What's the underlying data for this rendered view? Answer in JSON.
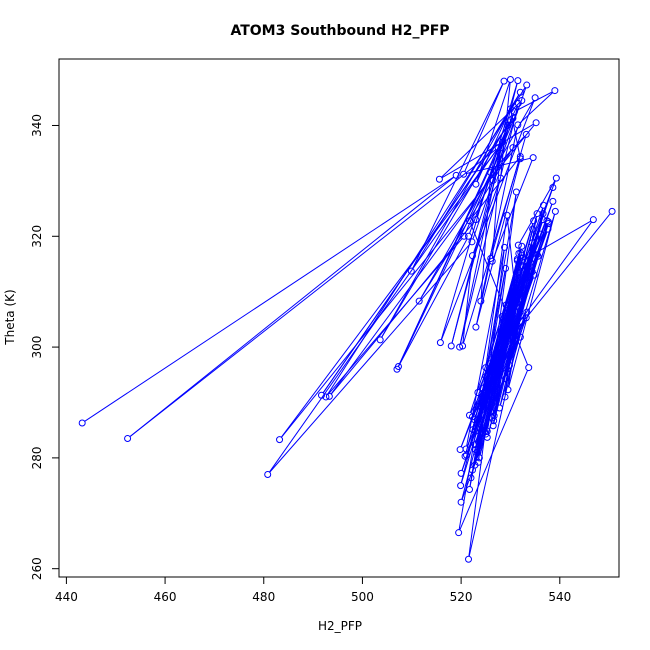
{
  "chart_data": {
    "type": "scatter",
    "title": "ATOM3 Southbound H2_PFP",
    "xlabel": "H2_PFP",
    "ylabel": "Theta (K)",
    "xlim": [
      438.5,
      552.0
    ],
    "ylim": [
      258.5,
      352.0
    ],
    "x_ticks": [
      440,
      460,
      480,
      500,
      520,
      540
    ],
    "y_ticks": [
      260,
      280,
      300,
      320,
      340
    ],
    "series_color": "#0000ff",
    "marker": "open-circle",
    "connected": true,
    "series": [
      {
        "x": [
          443.2,
          519.0,
          452.4,
          527.5,
          480.8,
          522.2,
          533.3,
          492.6,
          520.6,
          532.3,
          515.6,
          535.2,
          483.2,
          528.4,
          519.7,
          531.6,
          507.3,
          527.9,
          526.3,
          534.6,
          520.5,
          528.7,
          509.9,
          532.0,
          503.6,
          530.0,
          518.0,
          531.5,
          515.8,
          535.0,
          511.5,
          526.5,
          530.5,
          493.3,
          523.0,
          529.4,
          491.7,
          530.5,
          507.0,
          521.5,
          530.8,
          539.0,
          531.5,
          524.0,
          526.0,
          533.2,
          526.0,
          523.0,
          532.0,
          530.0,
          523.0,
          530.0,
          528.0,
          522.3,
          520.3,
          532.0,
          521.7,
          533.7,
          519.5,
          531.2,
          521.5,
          532.3,
          521.0,
          528.8,
          523.5,
          525.0,
          529.3,
          532.0,
          524.2,
          529.0,
          521.7,
          528.3,
          525.3,
          528.2,
          521.7,
          532.3,
          524.2,
          532.3,
          522.3,
          533.2,
          527.1,
          531.4,
          519.9,
          535.1,
          531.2,
          526.3,
          530.0,
          525.0,
          520.0,
          534.5,
          522.0,
          534.4,
          523.7,
          530.2,
          526.4,
          531.0,
          527.3,
          532.1,
          520.8,
          529.1,
          523.2,
          534.5,
          526.6,
          536.6,
          522.9,
          533.2,
          522.8,
          535.6,
          525.3,
          537.4,
          522.3,
          531.3,
          528.9,
          530.9,
          526.0,
          533.5,
          529.5,
          539.1,
          529.0,
          531.1,
          526.7,
          531.4,
          523.5,
          531.6,
          526.5,
          532.0,
          524.8,
          533.3,
          527.8,
          534.0,
          529.3,
          535.4,
          520.0,
          536.6,
          522.4,
          538.6,
          519.8,
          537.6,
          521.1,
          533.4,
          528.0,
          530.6,
          525.1,
          532.4,
          523.1,
          531.7,
          526.6,
          536.1,
          522.9,
          534.5,
          522.8,
          537.7,
          523.3,
          533.2,
          525.0,
          531.3,
          523.4,
          534.0,
          526.5,
          535.4,
          529.8,
          536.7,
          522.7,
          538.6,
          524.4,
          534.7,
          523.3,
          534.8,
          525.6,
          530.8,
          528.4,
          534.4,
          530.9,
          537.7,
          529.0,
          530.2,
          539.3,
          531.6,
          532.2,
          546.8,
          525.7,
          550.6
        ],
        "y": [
          286.3,
          331.0,
          283.5,
          336.0,
          277.0,
          319.0,
          347.3,
          291.0,
          320.0,
          344.5,
          330.3,
          340.5,
          283.3,
          337.0,
          300.0,
          344.0,
          296.5,
          335.0,
          315.5,
          334.2,
          331.2,
          348.0,
          313.7,
          346.0,
          301.3,
          341.0,
          300.2,
          348.1,
          300.8,
          345.0,
          308.3,
          330.1,
          336.0,
          291.1,
          323.0,
          340.0,
          291.3,
          341.3,
          296.0,
          320.0,
          342.5,
          346.3,
          340.1,
          308.3,
          331.5,
          338.4,
          316.0,
          303.6,
          334.0,
          343.0,
          329.4,
          348.3,
          330.5,
          316.5,
          300.2,
          334.4,
          322.8,
          296.3,
          266.5,
          328.0,
          261.7,
          304.6,
          281.6,
          318.0,
          279.2,
          296.3,
          323.8,
          301.8,
          291.5,
          314.2,
          274.3,
          305.5,
          284.8,
          299.0,
          287.7,
          316.6,
          287.8,
          318.2,
          287.4,
          305.3,
          290.2,
          315.9,
          275.0,
          319.9,
          302.1,
          287.2,
          305.3,
          284.3,
          272.0,
          321.3,
          276.4,
          318.8,
          280.0,
          303.2,
          292.1,
          311.5,
          295.9,
          317.0,
          280.3,
          307.6,
          281.0,
          317.6,
          286.7,
          324.1,
          281.5,
          313.3,
          282.4,
          316.4,
          283.7,
          322.8,
          277.8,
          308.1,
          291.0,
          309.2,
          288.3,
          315.4,
          292.3,
          324.5,
          294.3,
          308.4,
          287.6,
          315.6,
          282.9,
          313.5,
          285.8,
          305.7,
          284.8,
          306.3,
          289.0,
          312.7,
          296.0,
          316.7,
          277.2,
          323.0,
          285.1,
          326.3,
          281.5,
          321.3,
          280.5,
          314.6,
          296.7,
          310.8,
          293.0,
          314.7,
          285.4,
          316.9,
          294.0,
          320.4,
          284.8,
          317.9,
          278.7,
          322.3,
          289.3,
          314.5,
          294.7,
          307.9,
          291.8,
          315.3,
          294.4,
          324.1,
          296.7,
          325.6,
          286.9,
          328.8,
          292.6,
          322.8,
          286.9,
          313.0,
          289.5,
          310.1,
          298.0,
          313.6,
          302.3,
          322.6,
          305.6,
          309.2,
          330.5,
          318.4,
          315.5,
          323.0,
          297.0,
          324.5
        ]
      }
    ]
  }
}
